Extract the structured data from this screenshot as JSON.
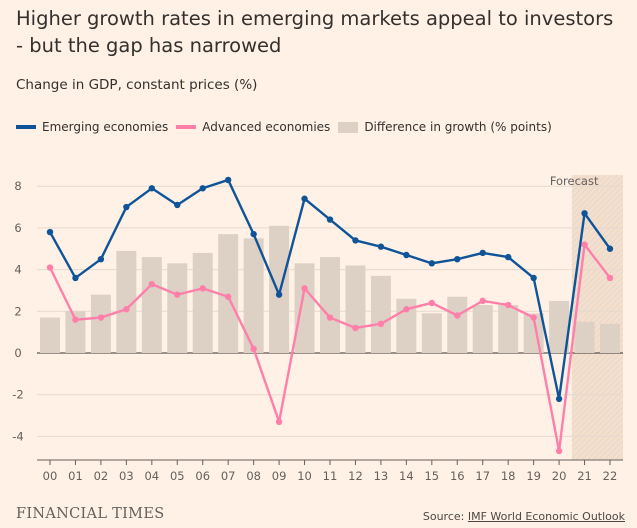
{
  "header": {
    "title": "Higher growth rates in emerging markets appeal to investors - but the gap has narrowed",
    "subtitle": "Change in GDP, constant prices (%)"
  },
  "legend": [
    {
      "label": "Emerging economies",
      "color": "#0f5499"
    },
    {
      "label": "Advanced economies",
      "color": "#ff7faa"
    },
    {
      "label": "Difference in growth (% points)",
      "color": "#ddd1c6"
    }
  ],
  "footer": {
    "logo": "FINANCIAL TIMES",
    "source_prefix": "Source: ",
    "source_name": "IMF World Economic Outlook"
  },
  "chart_data": {
    "type": "line",
    "categories": [
      "00",
      "01",
      "02",
      "03",
      "04",
      "05",
      "06",
      "07",
      "08",
      "09",
      "10",
      "11",
      "12",
      "13",
      "14",
      "15",
      "16",
      "17",
      "18",
      "19",
      "20",
      "21",
      "22"
    ],
    "series": [
      {
        "name": "Emerging economies",
        "type": "line",
        "color": "#0f5499",
        "values": [
          5.8,
          3.6,
          4.5,
          7.0,
          7.9,
          7.1,
          7.9,
          8.3,
          5.7,
          2.8,
          7.4,
          6.4,
          5.4,
          5.1,
          4.7,
          4.3,
          4.5,
          4.8,
          4.6,
          3.6,
          -2.2,
          6.7,
          5.0
        ]
      },
      {
        "name": "Advanced economies",
        "type": "line",
        "color": "#ff7faa",
        "values": [
          4.1,
          1.6,
          1.7,
          2.1,
          3.3,
          2.8,
          3.1,
          2.7,
          0.2,
          -3.3,
          3.1,
          1.7,
          1.2,
          1.4,
          2.1,
          2.4,
          1.8,
          2.5,
          2.3,
          1.7,
          -4.7,
          5.2,
          3.6
        ]
      },
      {
        "name": "Difference in growth (% points)",
        "type": "bar",
        "color": "#ddd1c6",
        "values": [
          1.7,
          2.0,
          2.8,
          4.9,
          4.6,
          4.3,
          4.8,
          5.7,
          5.5,
          6.1,
          4.3,
          4.6,
          4.2,
          3.7,
          2.6,
          1.9,
          2.7,
          2.3,
          2.3,
          1.9,
          2.5,
          1.5,
          1.4
        ]
      }
    ],
    "ylim": [
      -5,
      9
    ],
    "yticks": [
      8,
      6,
      4,
      2,
      0,
      -2,
      -4
    ],
    "grid": true,
    "forecast": {
      "label": "Forecast",
      "from": "21",
      "to": "22"
    }
  }
}
